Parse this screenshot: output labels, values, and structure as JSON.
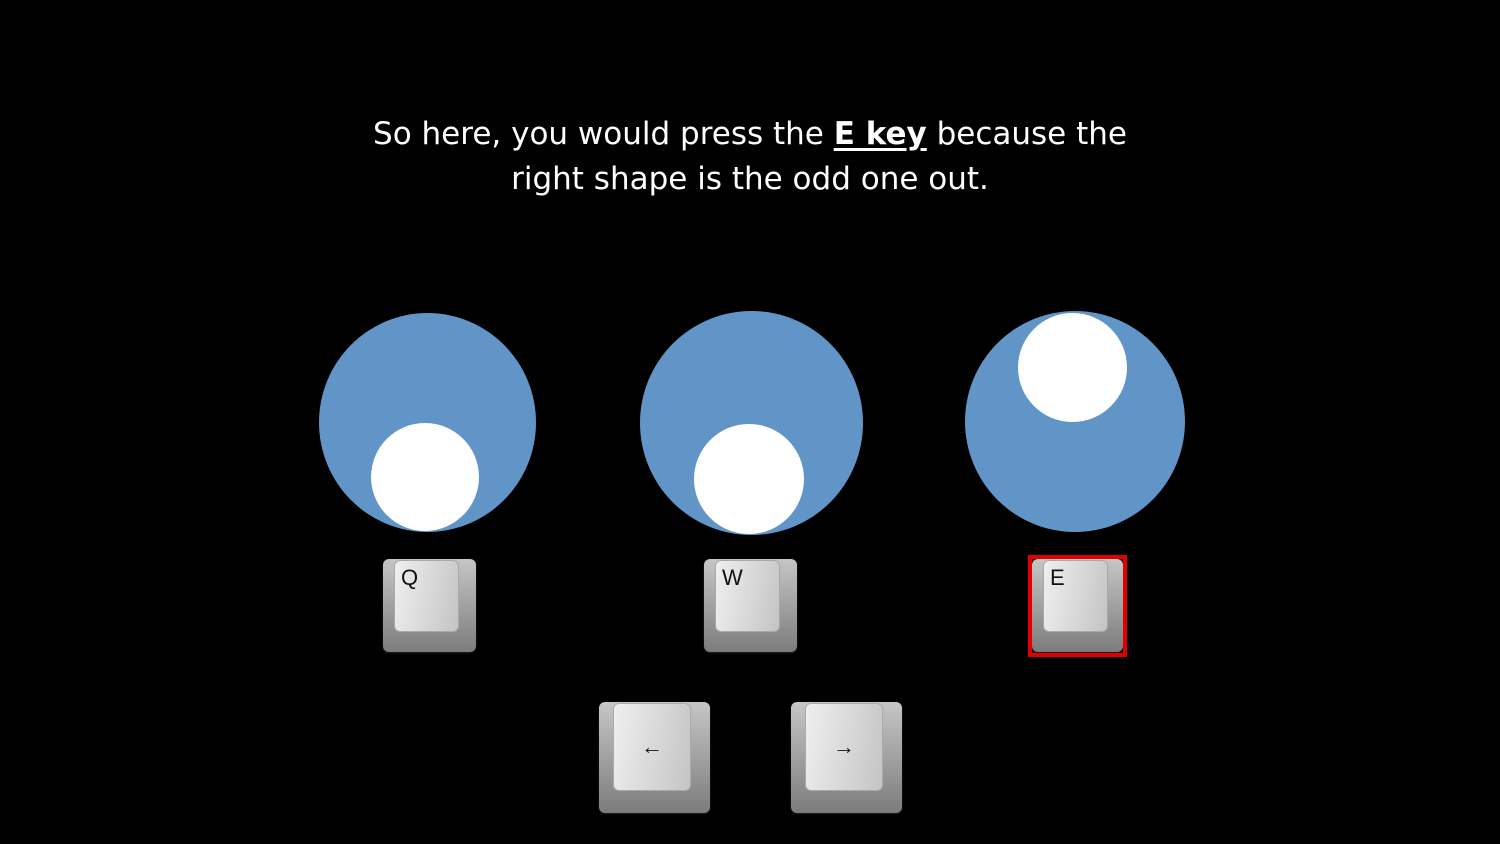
{
  "instruction": {
    "before": "So here, you would press the ",
    "key_phrase": "E key",
    "after": " because the",
    "line2": "right shape is the odd one out."
  },
  "colors": {
    "background": "#000000",
    "shape_fill": "#6195c8",
    "dot_fill": "#ffffff",
    "highlight": "#e00000"
  },
  "shapes": [
    {
      "name": "left",
      "dot_position": "bottom"
    },
    {
      "name": "middle",
      "dot_position": "bottom"
    },
    {
      "name": "right",
      "dot_position": "top"
    }
  ],
  "choice_keys": [
    {
      "label": "Q",
      "selected": false
    },
    {
      "label": "W",
      "selected": false
    },
    {
      "label": "E",
      "selected": true
    }
  ],
  "nav_keys": [
    {
      "label": "←",
      "icon": "arrow-left-icon"
    },
    {
      "label": "→",
      "icon": "arrow-right-icon"
    }
  ]
}
